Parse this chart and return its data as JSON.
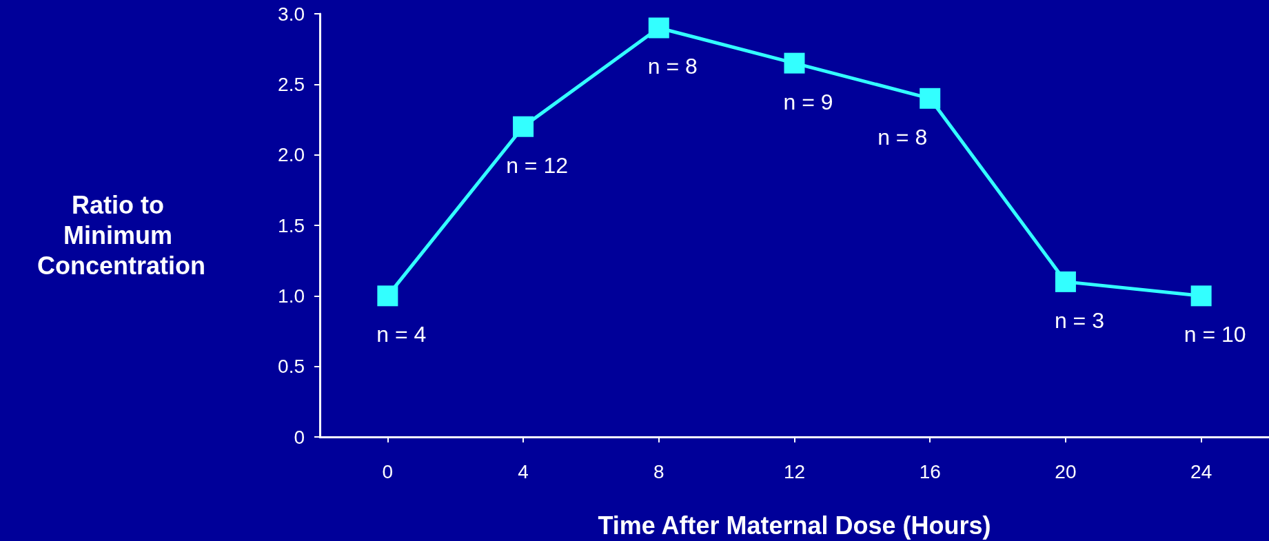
{
  "chart_data": {
    "type": "line",
    "xlabel": "Time After Maternal Dose (Hours)",
    "ylabel": "Ratio to Minimum Concentration",
    "x": [
      0,
      4,
      8,
      12,
      16,
      20,
      24
    ],
    "series": [
      {
        "color": "#33ffff",
        "values": [
          1.0,
          2.2,
          2.9,
          2.65,
          2.4,
          1.1,
          1.0
        ]
      }
    ],
    "annotations": [
      {
        "text": "n = 4",
        "x": 0,
        "y": 1.0
      },
      {
        "text": "n = 12",
        "x": 4,
        "y": 2.2
      },
      {
        "text": "n = 8",
        "x": 8,
        "y": 2.9
      },
      {
        "text": "n = 9",
        "x": 12,
        "y": 2.65
      },
      {
        "text": "n = 8",
        "x": 16,
        "y": 2.4
      },
      {
        "text": "n = 3",
        "x": 20,
        "y": 1.1
      },
      {
        "text": "n = 10",
        "x": 24,
        "y": 1.0
      }
    ],
    "xlim": [
      -2,
      26
    ],
    "xticks": [
      0,
      4,
      8,
      12,
      16,
      20,
      24
    ],
    "ylim": [
      0,
      3
    ],
    "yticks": [
      0,
      {
        "value": 0.5,
        "label": "0.5"
      },
      {
        "value": 1,
        "label": "1.0"
      },
      {
        "value": 1.5,
        "label": "1.5"
      },
      {
        "value": 2,
        "label": "2.0"
      },
      {
        "value": 2.5,
        "label": "2.5"
      },
      {
        "value": 3,
        "label": "3.0"
      }
    ],
    "grid": false,
    "marker": "square",
    "line_style": "solid"
  }
}
